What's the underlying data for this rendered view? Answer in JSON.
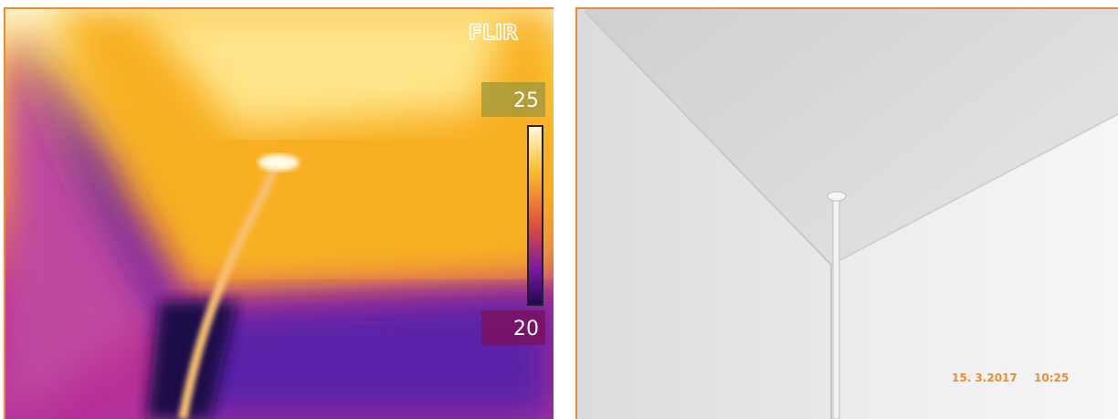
{
  "thermal": {
    "brand": "FLIR",
    "scale_max": "25",
    "scale_min": "20"
  },
  "photo": {
    "date": "15. 3.2017",
    "time": "10:25"
  }
}
